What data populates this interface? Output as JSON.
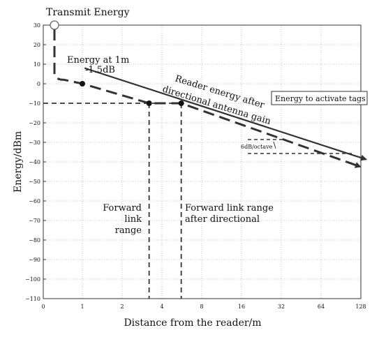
{
  "chart_data": {
    "type": "line",
    "xlabel": "Distance from the reader/m",
    "ylabel": "Energy/dBm",
    "x_tick_labels": [
      "0",
      "1",
      "2",
      "4",
      "8",
      "16",
      "32",
      "64",
      "128"
    ],
    "y_tick_labels": [
      "30",
      "20",
      "10",
      "0",
      "−10",
      "−20",
      "−30",
      "−40",
      "−50",
      "−60",
      "−70",
      "−80",
      "−90",
      "−100",
      "−110"
    ],
    "ylim": [
      -110,
      30
    ],
    "x_scale": "log2",
    "grid": true,
    "series": [
      {
        "style": "solid",
        "points": [
          {
            "x": 0.7,
            "y": 8
          },
          {
            "x": 128,
            "y": -37
          }
        ]
      },
      {
        "style": "dashed",
        "points": [
          {
            "x": 0,
            "y": 30
          },
          {
            "x": 0.25,
            "y": 2
          },
          {
            "x": 1,
            "y": 0
          },
          {
            "x": 3.2,
            "y": -10
          },
          {
            "x": 5.6,
            "y": -10
          },
          {
            "x": 128,
            "y": -39
          }
        ]
      }
    ],
    "markers": [
      {
        "shape": "open-circle",
        "x": 0,
        "y": 30
      },
      {
        "shape": "dot",
        "x": 1,
        "y": 0
      },
      {
        "shape": "dot",
        "x": 3.2,
        "y": -10
      },
      {
        "shape": "dot",
        "x": 5.6,
        "y": -10
      }
    ],
    "reference_lines": [
      {
        "orientation": "horizontal",
        "y": -10,
        "from_x": 0,
        "to_x": 5.6
      },
      {
        "orientation": "vertical",
        "x": 3.2,
        "from_y": -10,
        "to_y": -110
      },
      {
        "orientation": "vertical",
        "x": 5.6,
        "from_y": -10,
        "to_y": -110
      }
    ],
    "annotations": {
      "transmit": "Transmit Energy",
      "energy_at_1m": "Energy at 1m",
      "loss": "-1.5dB",
      "reader_energy_line1": "Reader energy after",
      "reader_energy_line2": "directional antenna gain",
      "activate": "Energy to activate tags",
      "slope": "6dB/octave",
      "forward_line1": "Forward",
      "forward_line2": "link",
      "forward_line3": "range",
      "forward_dir_line1": "Forward link range",
      "forward_dir_line2": "after directional"
    }
  }
}
